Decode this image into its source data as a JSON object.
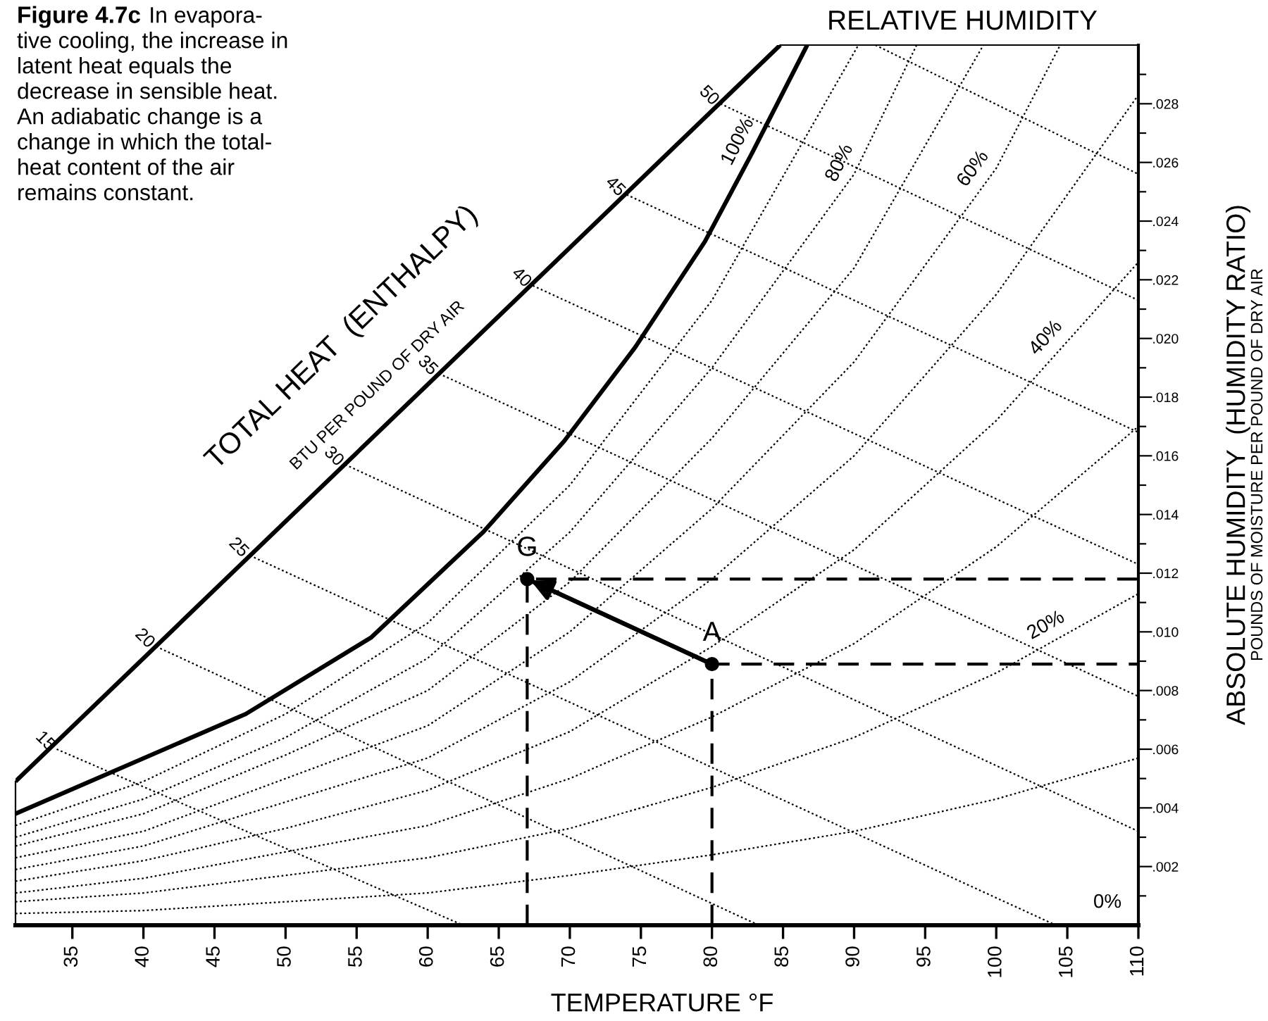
{
  "chart_data": {
    "type": "line",
    "title": "Figure 4.7c",
    "subtitle": "In evapora-\ntive cooling, the increase in\nlatent heat equals the\ndecrease in sensible heat.\nAn adiabatic change is a\nchange in which the total-\nheat content of the air\nremains constant.",
    "xlabel": "TEMPERATURE °F",
    "ylabel": "ABSOLUTE HUMIDITY  (HUMIDITY RATIO)",
    "annotations": [
      "RELATIVE HUMIDITY",
      "TOTAL HEAT  (ENTHALPY)",
      "BTU PER POUND OF DRY AIR",
      "POUNDS OF MOISTURE PER POUND OF DRY AIR",
      "0%"
    ],
    "xlim": [
      31,
      110
    ],
    "ylim": [
      0,
      0.03
    ],
    "xticks": [
      35,
      40,
      45,
      50,
      55,
      60,
      65,
      70,
      75,
      80,
      85,
      90,
      95,
      100,
      105,
      110
    ],
    "yticks": [
      {
        "value": 0.001,
        "label": null
      },
      {
        "value": 0.002,
        "label": ".002"
      },
      {
        "value": 0.003,
        "label": null
      },
      {
        "value": 0.004,
        "label": ".004"
      },
      {
        "value": 0.005,
        "label": null
      },
      {
        "value": 0.006,
        "label": ".006"
      },
      {
        "value": 0.007,
        "label": null
      },
      {
        "value": 0.008,
        "label": ".008"
      },
      {
        "value": 0.009,
        "label": null
      },
      {
        "value": 0.01,
        "label": ".010"
      },
      {
        "value": 0.011,
        "label": null
      },
      {
        "value": 0.012,
        "label": ".012"
      },
      {
        "value": 0.013,
        "label": null
      },
      {
        "value": 0.014,
        "label": ".014"
      },
      {
        "value": 0.015,
        "label": null
      },
      {
        "value": 0.016,
        "label": ".016"
      },
      {
        "value": 0.017,
        "label": null
      },
      {
        "value": 0.018,
        "label": ".018"
      },
      {
        "value": 0.019,
        "label": null
      },
      {
        "value": 0.02,
        "label": ".020"
      },
      {
        "value": 0.021,
        "label": null
      },
      {
        "value": 0.022,
        "label": ".022"
      },
      {
        "value": 0.023,
        "label": null
      },
      {
        "value": 0.024,
        "label": ".024"
      },
      {
        "value": 0.025,
        "label": null
      },
      {
        "value": 0.026,
        "label": ".026"
      },
      {
        "value": 0.027,
        "label": null
      },
      {
        "value": 0.028,
        "label": ".028"
      },
      {
        "value": 0.029,
        "label": null
      }
    ],
    "series": [
      {
        "type": "line",
        "line_style": "solid",
        "color": "#000000",
        "x": [
          31,
          84.8
        ],
        "values": [
          0.0049,
          0.03
        ]
      },
      {
        "type": "line",
        "line_style": "solid",
        "color": "#000000",
        "name": "100%",
        "x": [
          31,
          47.2,
          56,
          63.9,
          69.6,
          74.6,
          79.5,
          82.8,
          86.7
        ],
        "values": [
          0.0038,
          0.0072,
          0.0098,
          0.0134,
          0.0165,
          0.0197,
          0.0233,
          0.0263,
          0.03
        ]
      },
      {
        "type": "line",
        "line_style": "dotted",
        "color": "#000000",
        "x": [
          31,
          40,
          50,
          60,
          70,
          80,
          90.3
        ],
        "values": [
          0.0034,
          0.0049,
          0.0072,
          0.0103,
          0.015,
          0.0213,
          0.03
        ]
      },
      {
        "type": "line",
        "line_style": "dotted",
        "color": "#000000",
        "name": "80%",
        "x": [
          31,
          40,
          50,
          60,
          70,
          80,
          90,
          94.4
        ],
        "values": [
          0.003,
          0.0043,
          0.0064,
          0.0091,
          0.0134,
          0.019,
          0.0256,
          0.03
        ]
      },
      {
        "type": "line",
        "line_style": "dotted",
        "color": "#000000",
        "x": [
          31,
          40,
          50,
          60,
          70,
          80,
          90,
          99.1
        ],
        "values": [
          0.0027,
          0.0038,
          0.0058,
          0.008,
          0.0117,
          0.0166,
          0.0224,
          0.03
        ]
      },
      {
        "type": "line",
        "line_style": "dotted",
        "color": "#000000",
        "name": "60%",
        "x": [
          31,
          40,
          50,
          60,
          70,
          80,
          90,
          100,
          104.5
        ],
        "values": [
          0.0023,
          0.0032,
          0.005,
          0.0068,
          0.01,
          0.0142,
          0.0192,
          0.0258,
          0.03
        ]
      },
      {
        "type": "line",
        "line_style": "dotted",
        "color": "#000000",
        "x": [
          31,
          40,
          50,
          60,
          70,
          80,
          90,
          100,
          110
        ],
        "values": [
          0.0019,
          0.0027,
          0.0042,
          0.0057,
          0.0083,
          0.0118,
          0.016,
          0.0215,
          0.0283
        ]
      },
      {
        "type": "line",
        "line_style": "dotted",
        "color": "#000000",
        "name": "40%",
        "x": [
          31,
          40,
          50,
          60,
          70,
          80,
          90,
          100,
          110
        ],
        "values": [
          0.0015,
          0.0022,
          0.0033,
          0.0046,
          0.0066,
          0.0095,
          0.0128,
          0.0172,
          0.0226
        ]
      },
      {
        "type": "line",
        "line_style": "dotted",
        "color": "#000000",
        "x": [
          31,
          40,
          50,
          60,
          70,
          80,
          90,
          100,
          110
        ],
        "values": [
          0.0011,
          0.0016,
          0.0025,
          0.0034,
          0.005,
          0.0071,
          0.0096,
          0.0129,
          0.017
        ]
      },
      {
        "type": "line",
        "line_style": "dotted",
        "color": "#000000",
        "name": "20%",
        "x": [
          31,
          40,
          50,
          60,
          70,
          80,
          90,
          100,
          110
        ],
        "values": [
          0.0008,
          0.0011,
          0.0017,
          0.0023,
          0.0033,
          0.0047,
          0.0064,
          0.0086,
          0.0113
        ]
      },
      {
        "type": "line",
        "line_style": "dotted",
        "color": "#000000",
        "x": [
          31,
          40,
          50,
          60,
          70,
          80,
          90,
          100,
          110
        ],
        "values": [
          0.0004,
          0.0005,
          0.0008,
          0.0011,
          0.0017,
          0.0024,
          0.0032,
          0.0043,
          0.0057
        ]
      },
      {
        "type": "line",
        "line_style": "dotted",
        "color": "#000000",
        "name": "15",
        "x": [
          33.9,
          62.5
        ],
        "values": [
          0.006,
          0
        ]
      },
      {
        "type": "line",
        "line_style": "dotted",
        "color": "#000000",
        "name": "20",
        "x": [
          40.9,
          83.3
        ],
        "values": [
          0.0095,
          0
        ]
      },
      {
        "type": "line",
        "line_style": "dotted",
        "color": "#000000",
        "name": "25",
        "x": [
          47.5,
          104.2
        ],
        "values": [
          0.0126,
          0
        ]
      },
      {
        "type": "line",
        "line_style": "dotted",
        "color": "#000000",
        "name": "30",
        "x": [
          54.2,
          110
        ],
        "values": [
          0.0157,
          0.0032
        ]
      },
      {
        "type": "line",
        "line_style": "dotted",
        "color": "#000000",
        "name": "35",
        "x": [
          60.8,
          110
        ],
        "values": [
          0.0188,
          0.0078
        ]
      },
      {
        "type": "line",
        "line_style": "dotted",
        "color": "#000000",
        "name": "40",
        "x": [
          67.4,
          110
        ],
        "values": [
          0.0218,
          0.0123
        ]
      },
      {
        "type": "line",
        "line_style": "dotted",
        "color": "#000000",
        "name": "45",
        "x": [
          74.0,
          110
        ],
        "values": [
          0.0249,
          0.0168
        ]
      },
      {
        "type": "line",
        "line_style": "dotted",
        "color": "#000000",
        "name": "50",
        "x": [
          80.6,
          110
        ],
        "values": [
          0.028,
          0.0213
        ]
      },
      {
        "type": "line",
        "line_style": "dotted",
        "color": "#000000",
        "x": [
          91.5,
          110
        ],
        "values": [
          0.03,
          0.0256
        ]
      },
      {
        "type": "line",
        "line_style": "dashed",
        "color": "#000000",
        "x": [
          67,
          67,
          110
        ],
        "values": [
          0,
          0.0118,
          0.0118
        ]
      },
      {
        "type": "line",
        "line_style": "dashed",
        "color": "#000000",
        "x": [
          80,
          80,
          110
        ],
        "values": [
          0,
          0.0089,
          0.0089
        ]
      },
      {
        "type": "line",
        "line_style": "solid",
        "color": "#000000",
        "x": [
          80,
          67
        ],
        "values": [
          0.0089,
          0.0118
        ]
      },
      {
        "type": "scatter",
        "marker": "circle",
        "color": "#000000",
        "x": [
          67,
          80
        ],
        "values": [
          0.0118,
          0.0089
        ],
        "value_labels": [
          "G",
          "A"
        ]
      }
    ]
  }
}
